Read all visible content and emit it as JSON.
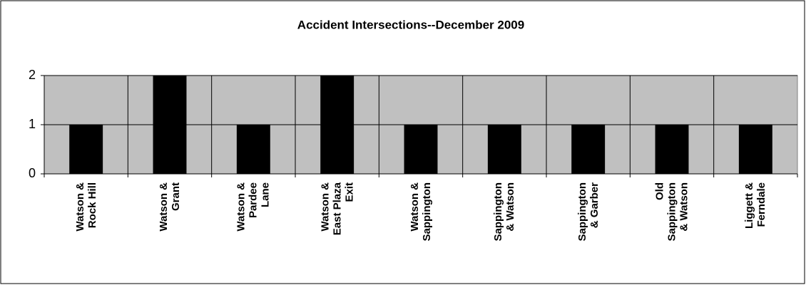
{
  "chart_data": {
    "type": "bar",
    "title": "Accident Intersections--December 2009",
    "categories": [
      "Watson &\nRock Hill",
      "Watson &\nGrant",
      "Watson &\nPardee\nLane",
      "Watson &\nEast Plaza\nExit",
      "Watson &\nSappington",
      "Sappington\n& Watson",
      "Sappington\n& Garber",
      "Old\nSappington\n& Watson",
      "Liggett &\nFerndale"
    ],
    "values": [
      1,
      2,
      1,
      2,
      1,
      1,
      1,
      1,
      1
    ],
    "color": "#000000",
    "ylim": [
      0,
      2
    ],
    "yticks": [
      0,
      1,
      2
    ],
    "grid": true
  }
}
